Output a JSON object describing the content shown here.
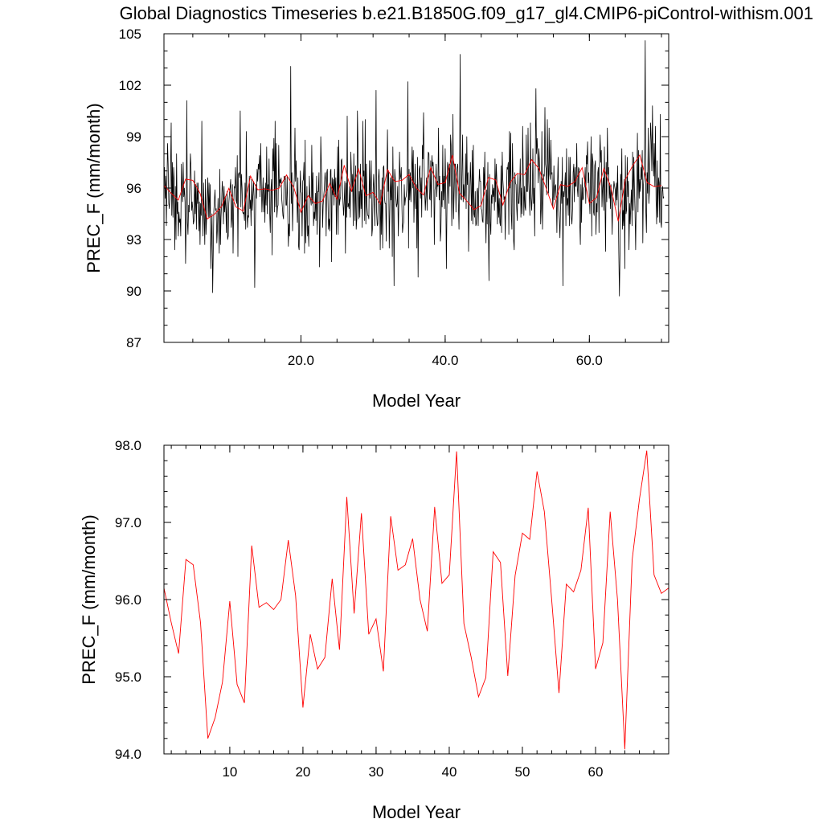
{
  "title": "Global Diagnostics Timeseries b.e21.B1850G.f09_g17_gl4.CMIP6-piControl-withism.001",
  "colors": {
    "monthly": "#000000",
    "annual": "#ff0000",
    "axes": "#000000"
  },
  "chart_data": [
    {
      "type": "line",
      "name": "top-panel",
      "xlabel": "Model Year",
      "ylabel": "PREC_F (mm/month)",
      "xlim": [
        1,
        71
      ],
      "ylim": [
        87,
        105
      ],
      "x_ticks": [
        20,
        40,
        60
      ],
      "x_tick_labels": [
        "20.0",
        "40.0",
        "60.0"
      ],
      "y_ticks": [
        87,
        90,
        93,
        96,
        99,
        102,
        105
      ],
      "y_tick_labels": [
        "87",
        "90",
        "93",
        "96",
        "99",
        "102",
        "105"
      ],
      "monthly_series": {
        "color": "#000000",
        "x_start": 1.0,
        "x_step": 0.08333,
        "values": [
          96.6,
          97.2,
          95.4,
          96.7,
          93.8,
          96.2,
          98.6,
          97.4,
          95.1,
          94.8,
          95.5,
          96.9,
          99.8,
          94.4,
          97.5,
          94.3,
          97.2,
          96.5,
          92.4,
          96.1,
          93.0,
          98.0,
          94.5,
          95.2,
          93.2,
          94.6,
          94.0,
          94.2,
          93.2,
          97.4,
          96.0,
          95.2,
          97.5,
          95.5,
          96.0,
          95.2,
          91.6,
          94.3,
          101.1,
          94.0,
          93.3,
          95.0,
          94.6,
          96.2,
          98.0,
          97.3,
          94.7,
          95.2,
          94.7,
          93.9,
          94.1,
          97.0,
          94.5,
          96.2,
          93.6,
          96.3,
          95.1,
          96.3,
          93.5,
          95.2,
          92.7,
          95.1,
          94.4,
          99.9,
          95.3,
          93.2,
          96.3,
          94.3,
          92.7,
          96.5,
          93.3,
          94.3,
          95.4,
          96.6,
          94.3,
          96.3,
          94.3,
          96.2,
          91.3,
          93.2,
          94.5,
          89.9,
          92.1,
          94.6,
          95.3,
          95.9,
          94.7,
          94.8,
          92.8,
          93.6,
          95.4,
          93.9,
          92.2,
          97.1,
          92.7,
          94.3,
          95.2,
          96.4,
          95.7,
          93.9,
          96.1,
          94.6,
          95.5,
          94.8,
          93.4,
          95.8,
          93.0,
          93.2,
          95.1,
          95.7,
          96.0,
          96.5,
          93.7,
          94.3,
          96.2,
          92.2,
          94.8,
          96.1,
          96.0,
          97.2,
          95.3,
          95.1,
          97.9,
          92.0,
          96.8,
          96.9,
          96.6,
          100.5,
          94.9,
          96.8,
          96.0,
          94.6,
          94.5,
          94.6,
          94.1,
          96.3,
          93.6,
          99.3,
          95.5,
          93.7,
          94.4,
          94.3,
          96.7,
          94.8,
          95.3,
          93.8,
          96.5,
          94.7,
          95.5,
          96.4,
          95.5,
          90.2,
          93.4,
          96.2,
          95.4,
          97.1,
          96.4,
          97.4,
          97.1,
          97.9,
          95.5,
          98.6,
          96.4,
          94.6,
          95.6,
          96.6,
          94.6,
          96.0,
          94.0,
          96.3,
          95.0,
          98.4,
          94.5,
          96.2,
          95.8,
          97.7,
          94.5,
          93.4,
          95.9,
          96.5,
          92.1,
          98.3,
          97.0,
          98.9,
          94.6,
          99.9,
          94.9,
          98.6,
          94.3,
          94.9,
          95.0,
          98.5,
          96.1,
          96.5,
          96.3,
          96.6,
          95.4,
          94.9,
          94.4,
          94.2,
          96.7,
          96.5,
          96.7,
          95.0,
          95.0,
          96.7,
          94.7,
          92.6,
          93.9,
          93.2,
          96.6,
          103.1,
          95.1,
          96.9,
          93.5,
          95.4,
          95.9,
          96.6,
          99.5,
          96.4,
          97.6,
          95.9,
          94.0,
          96.6,
          92.6,
          92.4,
          95.2,
          97.0,
          95.8,
          95.7,
          93.2,
          96.4,
          96.5,
          97.5,
          92.2,
          98.8,
          92.8,
          94.3,
          96.1,
          93.2,
          93.8,
          92.6,
          96.7,
          95.5,
          95.4,
          95.0,
          98.5,
          95.1,
          96.9,
          93.8,
          94.6,
          94.2,
          95.7,
          94.1,
          96.7,
          93.3,
          95.8,
          95.8,
          96.9,
          91.4,
          94.5,
          99.0,
          97.2,
          96.4,
          93.7,
          95.0,
          95.6,
          96.0,
          96.9,
          96.5,
          93.2,
          96.9,
          97.1,
          95.3,
          93.6,
          94.2,
          93.5,
          97.0,
          97.1,
          91.7,
          96.6,
          95.6,
          96.5,
          95.0,
          97.1,
          95.5,
          96.6,
          93.3,
          95.6,
          98.4,
          93.3,
          98.8,
          95.0,
          95.3,
          95.5,
          97.6,
          97.7,
          96.2,
          95.1,
          94.4,
          95.3,
          96.4,
          92.2,
          96.3,
          94.3,
          100.2,
          94.9,
          95.1,
          94.8,
          96.1,
          94.3,
          98.1,
          97.0,
          95.8,
          96.8,
          93.8,
          98.0,
          95.8,
          94.1,
          97.3,
          93.6,
          94.2,
          100.5,
          98.4,
          94.2,
          95.8,
          94.3,
          97.4,
          94.8,
          95.9,
          93.7,
          99.9,
          96.7,
          97.0,
          94.1,
          100.0,
          93.9,
          97.4,
          94.9,
          94.4,
          94.4,
          94.2,
          97.6,
          95.4,
          96.1,
          97.6,
          93.2,
          93.6,
          95.8,
          96.8,
          95.6,
          93.8,
          96.8,
          101.7,
          94.6,
          93.8,
          93.9,
          96.6,
          97.1,
          95.6,
          92.4,
          95.9,
          93.3,
          96.6,
          92.5,
          97.2,
          97.3,
          95.4,
          95.1,
          95.1,
          92.9,
          96.5,
          99.4,
          95.8,
          97.0,
          92.5,
          94.7,
          96.6,
          95.3,
          96.7,
          92.0,
          98.4,
          95.0,
          90.3,
          97.1,
          96.6,
          95.4,
          94.9,
          95.1,
          96.1,
          93.2,
          95.2,
          98.1,
          96.5,
          96.7,
          97.2,
          95.1,
          93.4,
          93.8,
          94.0,
          96.2,
          95.0,
          95.4,
          95.5,
          95.9,
          97.4,
          102.2,
          92.5,
          97.1,
          95.3,
          96.9,
          95.2,
          96.9,
          98.4,
          96.0,
          98.2,
          94.0,
          95.7,
          97.4,
          94.8,
          96.2,
          92.5,
          97.8,
          90.8,
          96.1,
          97.1,
          97.3,
          95.4,
          96.6,
          94.3,
          98.5,
          97.7,
          100.4,
          97.3,
          95.7,
          94.7,
          95.5,
          96.6,
          94.7,
          97.1,
          98.1,
          98.0,
          95.4,
          95.3,
          97.6,
          94.3,
          97.9,
          97.3,
          97.5,
          96.6,
          92.7,
          95.9,
          96.1,
          97.4,
          95.5,
          96.4,
          96.1,
          99.5,
          95.3,
          96.7,
          92.9,
          93.5,
          95.8,
          94.9,
          98.5,
          95.3,
          96.7,
          94.8,
          98.3,
          96.0,
          91.3,
          94.8,
          97.5,
          97.3,
          95.1,
          97.4,
          96.1,
          99.1,
          98.5,
          93.8,
          95.9,
          100.3,
          94.2,
          95.9,
          97.4,
          97.4,
          94.6,
          96.9,
          97.2,
          97.4,
          95.2,
          93.6,
          96.8,
          103.8,
          95.4,
          95.3,
          97.0,
          99.1,
          95.2,
          96.2,
          95.4,
          95.6,
          98.0,
          94.8,
          99.0,
          96.2,
          96.9,
          92.3,
          94.9,
          95.9,
          97.5,
          96.1,
          94.1,
          98.2,
          93.9,
          98.5,
          94.5,
          94.3,
          95.8,
          93.8,
          93.9,
          95.8,
          96.0,
          93.8,
          95.8,
          97.1,
          96.4,
          96.4,
          94.8,
          94.7,
          94.1,
          94.0,
          97.2,
          95.9,
          98.1,
          94.3,
          92.8,
          95.9,
          93.9,
          97.5,
          93.7,
          90.6,
          96.8,
          94.0,
          93.3,
          95.6,
          95.1,
          96.2,
          95.5,
          96.0,
          94.7,
          97.7,
          95.2,
          97.4,
          96.5,
          93.9,
          96.0,
          94.3,
          95.4,
          94.0,
          93.8,
          97.3,
          93.4,
          98.1,
          96.5,
          95.9,
          95.3,
          95.5,
          93.0,
          95.5,
          95.7,
          97.2,
          97.1,
          97.5,
          93.3,
          99.3,
          96.0,
          99.2,
          94.5,
          93.6,
          98.6,
          96.7,
          92.9,
          92.4,
          96.9,
          96.3,
          96.2,
          94.9,
          94.1,
          96.8,
          95.1,
          95.1,
          96.0,
          97.7,
          94.3,
          96.0,
          94.5,
          99.6,
          96.8,
          94.4,
          96.1,
          94.9,
          94.7,
          99.1,
          95.8,
          95.8,
          99.5,
          96.4,
          95.6,
          94.4,
          99.8,
          95.4,
          94.7,
          95.7,
          98.3,
          95.1,
          96.0,
          93.2,
          97.6,
          101.8,
          98.0,
          98.9,
          98.0,
          96.3,
          98.3,
          97.6,
          96.5,
          93.9,
          94.9,
          99.3,
          93.6,
          95.4,
          96.8,
          96.7,
          100.7,
          97.4,
          97.1,
          95.6,
          100.0,
          97.5,
          95.7,
          99.5,
          96.8,
          96.5,
          98.8,
          96.8,
          96.9,
          94.9,
          95.5,
          97.3,
          95.3,
          96.1,
          96.2,
          95.4,
          93.4,
          96.2,
          97.8,
          94.7,
          94.2,
          93.1,
          94.8,
          96.4,
          95.1,
          97.8,
          90.3,
          95.8,
          95.5,
          96.1,
          96.9,
          93.8,
          98.3,
          95.0,
          95.4,
          94.4,
          97.8,
          93.8,
          97.8,
          96.0,
          94.3,
          93.9,
          94.8,
          96.9,
          97.4,
          95.2,
          97.2,
          96.1,
          96.1,
          98.6,
          96.0,
          95.5,
          97.2,
          97.1,
          94.1,
          92.7,
          96.2,
          94.0,
          96.6,
          95.3,
          95.4,
          96.0,
          96.1,
          97.2,
          95.1,
          97.9,
          97.4,
          98.7,
          96.3,
          96.9,
          95.4,
          94.5,
          97.0,
          99.0,
          93.2,
          98.0,
          97.5,
          94.6,
          94.4,
          97.3,
          97.6,
          93.3,
          95.1,
          94.6,
          96.9,
          97.2,
          93.4,
          97.6,
          99.1,
          97.5,
          98.2,
          94.9,
          96.0,
          96.6,
          94.7,
          98.4,
          95.3,
          92.3,
          97.5,
          95.2,
          99.5,
          96.8,
          97.2,
          95.4,
          96.3,
          94.8,
          96.2,
          95.1,
          93.3,
          95.5,
          95.8,
          96.4,
          96.1,
          95.9,
          95.0,
          96.3,
          95.3,
          97.3,
          95.1,
          92.3,
          89.7,
          92.1,
          96.8,
          95.9,
          98.3,
          93.6,
          94.7,
          93.8,
          96.5,
          91.3,
          97.9,
          94.5,
          94.7,
          97.8,
          95.5,
          96.4,
          92.4,
          95.1,
          93.9,
          95.1,
          95.9,
          93.8,
          98.1,
          94.7,
          97.8,
          95.9,
          94.7,
          92.4,
          95.4,
          96.4,
          99.2,
          94.6,
          98.2,
          95.4,
          96.5,
          95.8,
          97.2,
          96.5,
          98.2,
          92.8,
          96.2,
          96.6,
          98.8,
          104.6,
          94.6,
          93.4,
          96.9,
          95.7,
          99.5,
          95.1,
          95.9,
          98.0,
          99.8,
          98.8,
          97.0,
          100.8,
          97.8,
          96.7,
          98.6,
          96.1,
          99.6,
          95.3,
          93.9,
          97.6,
          94.3,
          96.6,
          96.3,
          94.0,
          100.3,
          94.0,
          93.7,
          95.8,
          96.1,
          95.4,
          95.5
        ]
      },
      "annual_series": {
        "color": "#ff0000",
        "ref": "bottom-panel"
      }
    },
    {
      "type": "line",
      "name": "bottom-panel",
      "xlabel": "Model Year",
      "ylabel": "PREC_F (mm/month)",
      "xlim": [
        1,
        70
      ],
      "ylim": [
        94.0,
        98.0
      ],
      "x_ticks": [
        10,
        20,
        30,
        40,
        50,
        60
      ],
      "x_tick_labels": [
        "10",
        "20",
        "30",
        "40",
        "50",
        "60"
      ],
      "y_ticks": [
        94.0,
        95.0,
        96.0,
        97.0,
        98.0
      ],
      "y_tick_labels": [
        "94.0",
        "95.0",
        "96.0",
        "97.0",
        "98.0"
      ],
      "series": [
        {
          "color": "#ff0000",
          "x": [
            1,
            2,
            3,
            4,
            5,
            6,
            7,
            8,
            9,
            10,
            11,
            12,
            13,
            14,
            15,
            16,
            17,
            18,
            19,
            20,
            21,
            22,
            23,
            24,
            25,
            26,
            27,
            28,
            29,
            30,
            31,
            32,
            33,
            34,
            35,
            36,
            37,
            38,
            39,
            40,
            41,
            42,
            43,
            44,
            45,
            46,
            47,
            48,
            49,
            50,
            51,
            52,
            53,
            54,
            55,
            56,
            57,
            58,
            59,
            60,
            61,
            62,
            63,
            64,
            65,
            66,
            67,
            68,
            69,
            70
          ],
          "values": [
            96.15,
            95.7,
            95.3,
            96.52,
            96.45,
            95.7,
            94.2,
            94.47,
            94.93,
            95.98,
            94.9,
            94.66,
            96.7,
            95.9,
            95.96,
            95.87,
            96.0,
            96.77,
            96.05,
            94.6,
            95.55,
            95.1,
            95.25,
            96.27,
            95.35,
            97.33,
            95.82,
            97.12,
            95.55,
            95.75,
            95.07,
            97.08,
            96.38,
            96.45,
            96.79,
            96.0,
            95.59,
            97.2,
            96.21,
            96.32,
            97.92,
            95.69,
            95.25,
            94.74,
            94.99,
            96.62,
            96.48,
            95.01,
            96.31,
            96.86,
            96.78,
            97.66,
            97.14,
            96.0,
            94.79,
            96.2,
            96.1,
            96.38,
            97.19,
            95.1,
            95.44,
            97.14,
            96.0,
            94.06,
            96.51,
            97.3,
            97.93,
            96.32,
            96.08,
            96.15
          ]
        }
      ]
    }
  ]
}
